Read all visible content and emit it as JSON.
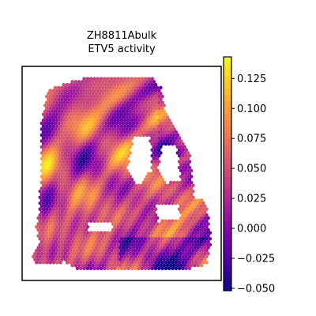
{
  "chart_data": {
    "type": "heatmap",
    "title_line1": "ZH8811Abulk",
    "title_line2": "ETV5 activity",
    "xlabel": "",
    "ylabel": "",
    "colormap": "plasma",
    "colorbar": {
      "vmin": -0.052,
      "vmax": 0.143,
      "ticks": [
        -0.05,
        -0.025,
        0.0,
        0.025,
        0.05,
        0.075,
        0.1,
        0.125
      ],
      "tick_labels": [
        "−0.050",
        "−0.025",
        "0.000",
        "0.025",
        "0.050",
        "0.075",
        "0.100",
        "0.125"
      ]
    },
    "grid": false,
    "legend": "none"
  }
}
